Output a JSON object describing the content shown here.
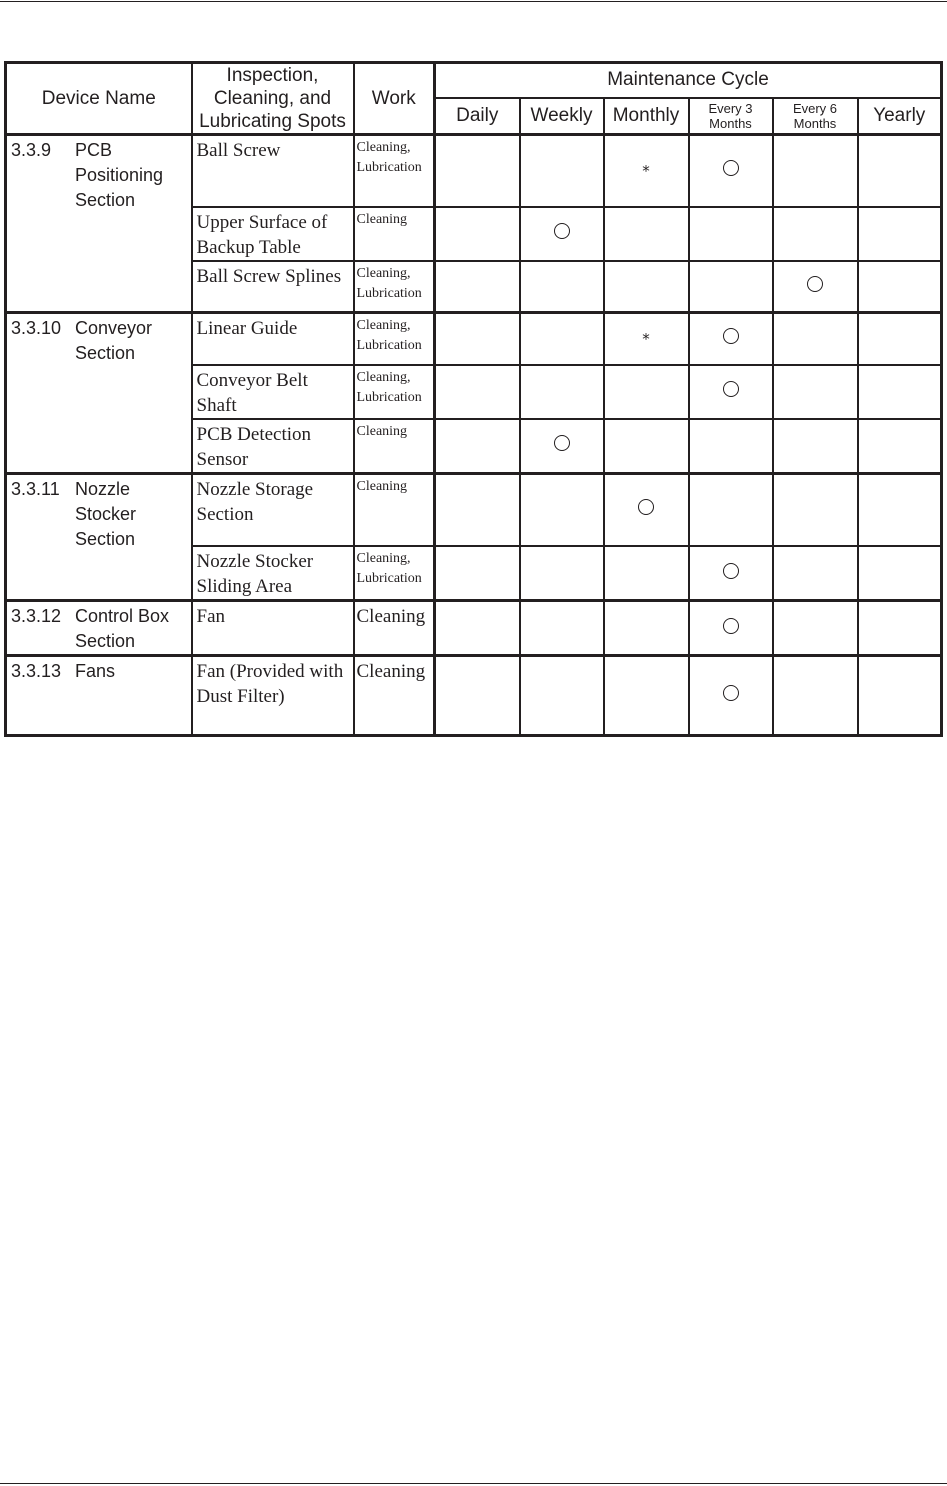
{
  "header": {
    "device_name": "Device Name",
    "spots": "Inspection, Cleaning, and Lubricating Spots",
    "work": "Work",
    "cycle": "Maintenance Cycle",
    "cycles": [
      "Daily",
      "Weekly",
      "Monthly",
      "Every 3 Months",
      "Every 6 Months",
      "Yearly"
    ]
  },
  "marks": {
    "circle": "○",
    "asterisk": "*"
  },
  "groups": [
    {
      "number": "3.3.9",
      "name": "PCB Positioning Section",
      "items": [
        {
          "spot": "Ball Screw",
          "work": "Cleaning, Lubrication",
          "cycles": [
            "",
            "",
            "*",
            "○",
            "",
            ""
          ]
        },
        {
          "spot": "Upper Surface of Backup Table",
          "work": "Cleaning",
          "cycles": [
            "",
            "○",
            "",
            "",
            "",
            ""
          ]
        },
        {
          "spot": "Ball Screw Splines",
          "work": "Cleaning, Lubrication",
          "cycles": [
            "",
            "",
            "",
            "",
            "○",
            ""
          ]
        }
      ]
    },
    {
      "number": "3.3.10",
      "name": "Conveyor Section",
      "items": [
        {
          "spot": "Linear Guide",
          "work": "Cleaning, Lubrication",
          "cycles": [
            "",
            "",
            "*",
            "○",
            "",
            ""
          ]
        },
        {
          "spot": "Conveyor Belt Shaft",
          "work": "Cleaning, Lubrication",
          "cycles": [
            "",
            "",
            "",
            "○",
            "",
            ""
          ]
        },
        {
          "spot": "PCB Detection Sensor",
          "work": "Cleaning",
          "cycles": [
            "",
            "○",
            "",
            "",
            "",
            ""
          ]
        }
      ]
    },
    {
      "number": "3.3.11",
      "name": "Nozzle Stocker Section",
      "items": [
        {
          "spot": "Nozzle Storage Section",
          "work": "Cleaning",
          "cycles": [
            "",
            "",
            "○",
            "",
            "",
            ""
          ]
        },
        {
          "spot": "Nozzle Stocker Sliding Area",
          "work": "Cleaning, Lubrication",
          "cycles": [
            "",
            "",
            "",
            "○",
            "",
            ""
          ]
        }
      ]
    },
    {
      "number": "3.3.12",
      "name": "Control Box Section",
      "items": [
        {
          "spot": "Fan",
          "work": "Cleaning",
          "work_large": true,
          "cycles": [
            "",
            "",
            "",
            "○",
            "",
            ""
          ]
        }
      ]
    },
    {
      "number": "3.3.13",
      "name": "Fans",
      "items": [
        {
          "spot": "Fan (Provided with Dust Filter)",
          "work": "Cleaning",
          "work_large": true,
          "cycles": [
            "",
            "",
            "",
            "○",
            "",
            ""
          ]
        }
      ]
    }
  ]
}
